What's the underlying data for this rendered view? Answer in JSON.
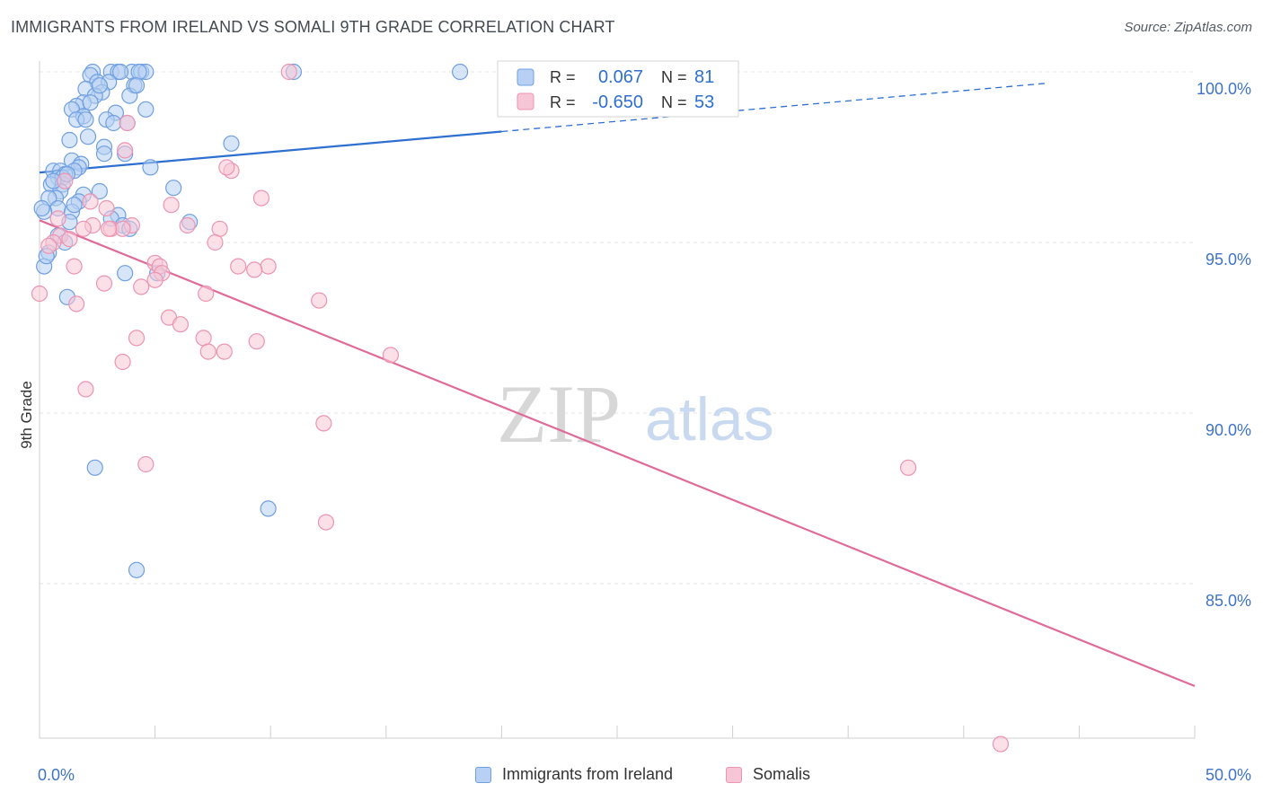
{
  "header": {
    "title": "IMMIGRANTS FROM IRELAND VS SOMALI 9TH GRADE CORRELATION CHART",
    "source": "Source: ZipAtlas.com"
  },
  "watermark": {
    "zip": "ZIP",
    "atlas": "atlas"
  },
  "colors": {
    "blue_fill": "#b7d0f3",
    "blue_stroke": "#6f9fe0",
    "blue_line": "#2e6fd0",
    "pink_fill": "#f7c6d6",
    "pink_stroke": "#ec94b2",
    "pink_line": "#e06a98",
    "tick_text": "#3f73c7",
    "grid": "#e4e4e4"
  },
  "stats_legend": {
    "rows": [
      {
        "r_label": "R =",
        "r_value": "0.067",
        "n_label": "N =",
        "n_value": "81"
      },
      {
        "r_label": "R =",
        "r_value": "-0.650",
        "n_label": "N =",
        "n_value": "53"
      }
    ]
  },
  "series_legend": [
    "Immigrants from Ireland",
    "Somalis"
  ],
  "chart_data": {
    "type": "scatter",
    "title": "IMMIGRANTS FROM IRELAND VS SOMALI 9TH GRADE CORRELATION CHART",
    "xlabel": "",
    "ylabel": "9th Grade",
    "xlim": [
      0,
      50
    ],
    "ylim": [
      80,
      100.5
    ],
    "x_tick_labels": [
      "0.0%",
      "50.0%"
    ],
    "y_ticks": [
      85,
      90,
      95,
      100
    ],
    "y_tick_labels": [
      "85.0%",
      "90.0%",
      "95.0%",
      "100.0%"
    ],
    "grid": true,
    "legend_position": "top-center and bottom",
    "series": [
      {
        "name": "Immigrants from Ireland",
        "r": 0.067,
        "n": 81,
        "trend": {
          "x": [
            0,
            50
          ],
          "y": [
            97.05,
            100.05
          ],
          "solid_until_x": 20
        },
        "points": [
          {
            "x": 2.3,
            "y": 100
          },
          {
            "x": 3.1,
            "y": 100
          },
          {
            "x": 3.4,
            "y": 100
          },
          {
            "x": 4.0,
            "y": 100
          },
          {
            "x": 4.4,
            "y": 100
          },
          {
            "x": 4.6,
            "y": 100
          },
          {
            "x": 18.2,
            "y": 100
          },
          {
            "x": 11.0,
            "y": 100
          },
          {
            "x": 2.2,
            "y": 99.9
          },
          {
            "x": 2.5,
            "y": 99.7
          },
          {
            "x": 3.0,
            "y": 99.7
          },
          {
            "x": 4.1,
            "y": 99.6
          },
          {
            "x": 2.0,
            "y": 99.5
          },
          {
            "x": 2.7,
            "y": 99.4
          },
          {
            "x": 2.4,
            "y": 99.3
          },
          {
            "x": 3.9,
            "y": 99.3
          },
          {
            "x": 1.9,
            "y": 99.1
          },
          {
            "x": 1.6,
            "y": 99.0
          },
          {
            "x": 1.4,
            "y": 98.9
          },
          {
            "x": 4.6,
            "y": 98.9
          },
          {
            "x": 3.3,
            "y": 98.8
          },
          {
            "x": 1.9,
            "y": 98.7
          },
          {
            "x": 2.9,
            "y": 98.6
          },
          {
            "x": 1.6,
            "y": 98.6
          },
          {
            "x": 3.2,
            "y": 98.5
          },
          {
            "x": 3.8,
            "y": 98.5
          },
          {
            "x": 2.1,
            "y": 98.1
          },
          {
            "x": 1.3,
            "y": 98.0
          },
          {
            "x": 8.3,
            "y": 97.9
          },
          {
            "x": 2.8,
            "y": 97.8
          },
          {
            "x": 2.8,
            "y": 97.6
          },
          {
            "x": 3.7,
            "y": 97.6
          },
          {
            "x": 1.4,
            "y": 97.4
          },
          {
            "x": 1.8,
            "y": 97.3
          },
          {
            "x": 1.7,
            "y": 97.2
          },
          {
            "x": 4.8,
            "y": 97.2
          },
          {
            "x": 1.5,
            "y": 97.1
          },
          {
            "x": 0.6,
            "y": 97.1
          },
          {
            "x": 0.9,
            "y": 97.1
          },
          {
            "x": 1.1,
            "y": 97.0
          },
          {
            "x": 0.8,
            "y": 96.9
          },
          {
            "x": 1.0,
            "y": 96.9
          },
          {
            "x": 0.5,
            "y": 96.7
          },
          {
            "x": 1.0,
            "y": 96.7
          },
          {
            "x": 5.8,
            "y": 96.6
          },
          {
            "x": 0.9,
            "y": 96.5
          },
          {
            "x": 2.6,
            "y": 96.5
          },
          {
            "x": 1.9,
            "y": 96.4
          },
          {
            "x": 0.7,
            "y": 96.3
          },
          {
            "x": 0.4,
            "y": 96.3
          },
          {
            "x": 1.7,
            "y": 96.2
          },
          {
            "x": 0.8,
            "y": 96.0
          },
          {
            "x": 0.2,
            "y": 95.9
          },
          {
            "x": 1.4,
            "y": 95.9
          },
          {
            "x": 3.4,
            "y": 95.8
          },
          {
            "x": 3.1,
            "y": 95.7
          },
          {
            "x": 6.5,
            "y": 95.6
          },
          {
            "x": 1.3,
            "y": 95.6
          },
          {
            "x": 3.6,
            "y": 95.5
          },
          {
            "x": 3.9,
            "y": 95.4
          },
          {
            "x": 0.8,
            "y": 95.2
          },
          {
            "x": 1.1,
            "y": 95.0
          },
          {
            "x": 0.4,
            "y": 94.7
          },
          {
            "x": 0.2,
            "y": 94.3
          },
          {
            "x": 3.7,
            "y": 94.1
          },
          {
            "x": 5.1,
            "y": 94.1
          },
          {
            "x": 1.2,
            "y": 93.4
          },
          {
            "x": 2.4,
            "y": 88.4
          },
          {
            "x": 9.9,
            "y": 87.2
          },
          {
            "x": 4.2,
            "y": 85.4
          },
          {
            "x": 0.1,
            "y": 96.0
          },
          {
            "x": 2.2,
            "y": 99.1
          },
          {
            "x": 3.5,
            "y": 100
          },
          {
            "x": 4.3,
            "y": 100
          },
          {
            "x": 2.6,
            "y": 99.6
          },
          {
            "x": 1.2,
            "y": 97.0
          },
          {
            "x": 0.6,
            "y": 96.8
          },
          {
            "x": 2.0,
            "y": 98.6
          },
          {
            "x": 4.2,
            "y": 99.6
          },
          {
            "x": 1.5,
            "y": 96.1
          },
          {
            "x": 0.3,
            "y": 94.6
          }
        ]
      },
      {
        "name": "Somalis",
        "r": -0.65,
        "n": 53,
        "trend": {
          "x": [
            0,
            50
          ],
          "y": [
            95.65,
            82.0
          ],
          "solid_until_x": 50
        },
        "points": [
          {
            "x": 10.8,
            "y": 100
          },
          {
            "x": 3.8,
            "y": 98.5
          },
          {
            "x": 3.7,
            "y": 97.7
          },
          {
            "x": 8.3,
            "y": 97.1
          },
          {
            "x": 8.1,
            "y": 97.2
          },
          {
            "x": 9.6,
            "y": 96.3
          },
          {
            "x": 5.7,
            "y": 96.1
          },
          {
            "x": 2.2,
            "y": 96.2
          },
          {
            "x": 2.9,
            "y": 96.0
          },
          {
            "x": 1.1,
            "y": 96.8
          },
          {
            "x": 0.8,
            "y": 95.7
          },
          {
            "x": 2.3,
            "y": 95.5
          },
          {
            "x": 3.1,
            "y": 95.4
          },
          {
            "x": 4.0,
            "y": 95.5
          },
          {
            "x": 3.6,
            "y": 95.4
          },
          {
            "x": 6.4,
            "y": 95.5
          },
          {
            "x": 7.8,
            "y": 95.4
          },
          {
            "x": 1.9,
            "y": 95.4
          },
          {
            "x": 0.9,
            "y": 95.2
          },
          {
            "x": 0.6,
            "y": 95.0
          },
          {
            "x": 1.3,
            "y": 95.1
          },
          {
            "x": 7.6,
            "y": 95.0
          },
          {
            "x": 5.0,
            "y": 94.4
          },
          {
            "x": 5.2,
            "y": 94.3
          },
          {
            "x": 1.5,
            "y": 94.3
          },
          {
            "x": 8.6,
            "y": 94.3
          },
          {
            "x": 9.9,
            "y": 94.3
          },
          {
            "x": 9.3,
            "y": 94.2
          },
          {
            "x": 5.3,
            "y": 94.1
          },
          {
            "x": 5.0,
            "y": 93.9
          },
          {
            "x": 2.8,
            "y": 93.8
          },
          {
            "x": 4.4,
            "y": 93.7
          },
          {
            "x": 7.2,
            "y": 93.5
          },
          {
            "x": 12.1,
            "y": 93.3
          },
          {
            "x": 0.0,
            "y": 93.5
          },
          {
            "x": 1.6,
            "y": 93.2
          },
          {
            "x": 5.6,
            "y": 92.8
          },
          {
            "x": 6.1,
            "y": 92.6
          },
          {
            "x": 4.2,
            "y": 92.2
          },
          {
            "x": 7.1,
            "y": 92.2
          },
          {
            "x": 9.4,
            "y": 92.1
          },
          {
            "x": 7.3,
            "y": 91.8
          },
          {
            "x": 8.0,
            "y": 91.8
          },
          {
            "x": 15.2,
            "y": 91.7
          },
          {
            "x": 3.6,
            "y": 91.5
          },
          {
            "x": 2.0,
            "y": 90.7
          },
          {
            "x": 12.3,
            "y": 89.7
          },
          {
            "x": 4.6,
            "y": 88.5
          },
          {
            "x": 37.6,
            "y": 88.4
          },
          {
            "x": 12.4,
            "y": 86.8
          },
          {
            "x": 41.6,
            "y": 80.3
          },
          {
            "x": 3.0,
            "y": 95.4
          },
          {
            "x": 0.4,
            "y": 94.9
          }
        ]
      }
    ]
  }
}
